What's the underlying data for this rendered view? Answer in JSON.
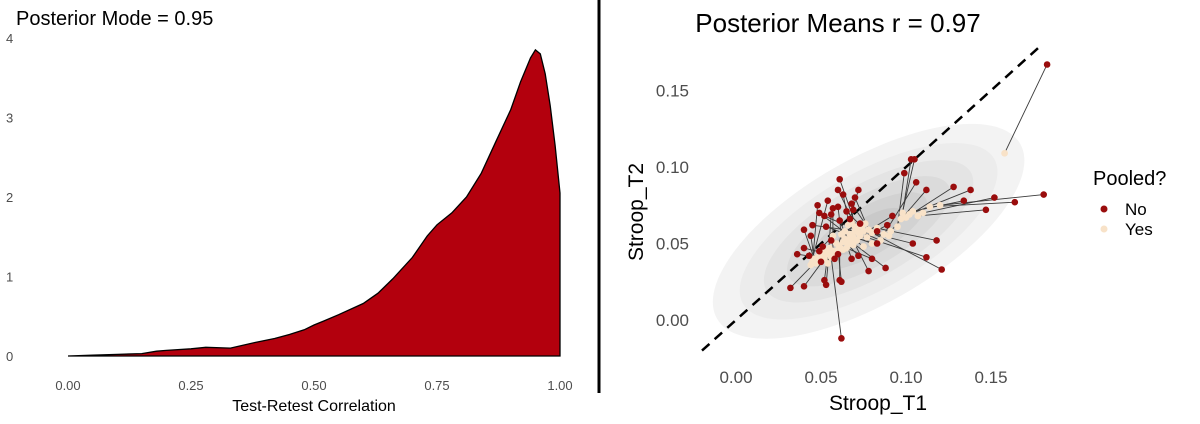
{
  "chart_data": [
    {
      "type": "area",
      "title": "Posterior Mode = 0.95",
      "xlabel": "Test-Retest Correlation",
      "ylabel": "",
      "xlim": [
        -0.03,
        1.0
      ],
      "ylim": [
        0,
        4.2
      ],
      "x_ticks": [
        "0.00",
        "0.25",
        "0.50",
        "0.75",
        "1.00"
      ],
      "y_ticks": [
        "0",
        "1",
        "2",
        "3",
        "4"
      ],
      "fill_color": "#b3000d",
      "grid": false,
      "density": {
        "x": [
          0.0,
          0.05,
          0.1,
          0.15,
          0.18,
          0.2,
          0.25,
          0.28,
          0.33,
          0.38,
          0.42,
          0.45,
          0.48,
          0.5,
          0.52,
          0.55,
          0.6,
          0.63,
          0.66,
          0.7,
          0.73,
          0.75,
          0.78,
          0.81,
          0.84,
          0.87,
          0.9,
          0.92,
          0.94,
          0.95,
          0.96,
          0.97,
          0.98,
          0.99,
          1.0
        ],
        "y": [
          0.0,
          0.01,
          0.02,
          0.03,
          0.06,
          0.07,
          0.09,
          0.11,
          0.1,
          0.17,
          0.22,
          0.27,
          0.33,
          0.39,
          0.44,
          0.52,
          0.66,
          0.79,
          0.97,
          1.24,
          1.51,
          1.65,
          1.8,
          2.0,
          2.3,
          2.7,
          3.1,
          3.45,
          3.75,
          3.85,
          3.8,
          3.55,
          3.15,
          2.65,
          2.05
        ]
      }
    },
    {
      "type": "scatter",
      "title": "Posterior Means r = 0.97",
      "xlabel": "Stroop_T1",
      "ylabel": "Stroop_T2",
      "xlim": [
        -0.02,
        0.195
      ],
      "ylim": [
        -0.02,
        0.175
      ],
      "x_ticks": [
        "0.00",
        "0.05",
        "0.10",
        "0.15"
      ],
      "y_ticks": [
        "0.00",
        "0.05",
        "0.10",
        "0.15"
      ],
      "identity_line": true,
      "grid": false,
      "legend": {
        "title": "Pooled?",
        "placement": "right",
        "entries": [
          {
            "label": "No",
            "color": "#9a0d0d"
          },
          {
            "label": "Yes",
            "color": "#f8e2c8"
          }
        ]
      },
      "series": [
        {
          "name": "No",
          "color": "#9a0d0d",
          "points": [
            [
              0.183,
              0.167
            ],
            [
              0.181,
              0.082
            ],
            [
              0.164,
              0.077
            ],
            [
              0.152,
              0.08
            ],
            [
              0.147,
              0.072
            ],
            [
              0.134,
              0.078
            ],
            [
              0.138,
              0.085
            ],
            [
              0.128,
              0.087
            ],
            [
              0.105,
              0.105
            ],
            [
              0.103,
              0.105
            ],
            [
              0.099,
              0.096
            ],
            [
              0.112,
              0.085
            ],
            [
              0.106,
              0.09
            ],
            [
              0.118,
              0.052
            ],
            [
              0.121,
              0.033
            ],
            [
              0.112,
              0.041
            ],
            [
              0.104,
              0.05
            ],
            [
              0.092,
              0.068
            ],
            [
              0.089,
              0.062
            ],
            [
              0.083,
              0.058
            ],
            [
              0.083,
              0.05
            ],
            [
              0.088,
              0.034
            ],
            [
              0.078,
              0.032
            ],
            [
              0.072,
              0.042
            ],
            [
              0.08,
              0.04
            ],
            [
              0.068,
              0.04
            ],
            [
              0.06,
              0.043
            ],
            [
              0.058,
              0.04
            ],
            [
              0.061,
              0.026
            ],
            [
              0.062,
              0.025
            ],
            [
              0.056,
              0.052
            ],
            [
              0.05,
              0.038
            ],
            [
              0.051,
              0.048
            ],
            [
              0.062,
              -0.012
            ],
            [
              0.053,
              0.023
            ],
            [
              0.052,
              0.026
            ],
            [
              0.032,
              0.021
            ],
            [
              0.04,
              0.022
            ],
            [
              0.04,
              0.047
            ],
            [
              0.043,
              0.042
            ],
            [
              0.049,
              0.045
            ],
            [
              0.036,
              0.043
            ],
            [
              0.04,
              0.059
            ],
            [
              0.044,
              0.055
            ],
            [
              0.048,
              0.075
            ],
            [
              0.054,
              0.078
            ],
            [
              0.056,
              0.069
            ],
            [
              0.057,
              0.073
            ],
            [
              0.06,
              0.074
            ],
            [
              0.061,
              0.065
            ],
            [
              0.063,
              0.082
            ],
            [
              0.06,
              0.085
            ],
            [
              0.061,
              0.092
            ],
            [
              0.065,
              0.071
            ],
            [
              0.068,
              0.076
            ],
            [
              0.07,
              0.08
            ],
            [
              0.072,
              0.085
            ],
            [
              0.069,
              0.072
            ],
            [
              0.067,
              0.066
            ],
            [
              0.073,
              0.063
            ],
            [
              0.049,
              0.07
            ],
            [
              0.053,
              0.061
            ],
            [
              0.052,
              0.068
            ],
            [
              0.045,
              0.062
            ]
          ]
        },
        {
          "name": "Yes",
          "color": "#f8e2c8",
          "points": [
            [
              0.158,
              0.109
            ],
            [
              0.12,
              0.075
            ],
            [
              0.114,
              0.074
            ],
            [
              0.11,
              0.07
            ],
            [
              0.107,
              0.068
            ],
            [
              0.104,
              0.071
            ],
            [
              0.102,
              0.069
            ],
            [
              0.1,
              0.067
            ],
            [
              0.097,
              0.066
            ],
            [
              0.098,
              0.07
            ],
            [
              0.095,
              0.061
            ],
            [
              0.091,
              0.058
            ],
            [
              0.087,
              0.056
            ],
            [
              0.083,
              0.06
            ],
            [
              0.08,
              0.057
            ],
            [
              0.077,
              0.054
            ],
            [
              0.075,
              0.058
            ],
            [
              0.073,
              0.055
            ],
            [
              0.071,
              0.052
            ],
            [
              0.07,
              0.058
            ],
            [
              0.069,
              0.054
            ],
            [
              0.068,
              0.051
            ],
            [
              0.067,
              0.056
            ],
            [
              0.066,
              0.049
            ],
            [
              0.065,
              0.047
            ],
            [
              0.064,
              0.053
            ],
            [
              0.063,
              0.051
            ],
            [
              0.062,
              0.056
            ],
            [
              0.061,
              0.048
            ],
            [
              0.06,
              0.046
            ],
            [
              0.059,
              0.05
            ],
            [
              0.058,
              0.044
            ],
            [
              0.057,
              0.055
            ],
            [
              0.056,
              0.041
            ],
            [
              0.055,
              0.047
            ],
            [
              0.054,
              0.043
            ],
            [
              0.053,
              0.045
            ],
            [
              0.052,
              0.04
            ],
            [
              0.051,
              0.044
            ],
            [
              0.05,
              0.042
            ],
            [
              0.049,
              0.039
            ],
            [
              0.048,
              0.041
            ],
            [
              0.047,
              0.037
            ],
            [
              0.046,
              0.04
            ],
            [
              0.045,
              0.038
            ],
            [
              0.044,
              0.036
            ],
            [
              0.054,
              0.037
            ],
            [
              0.057,
              0.045
            ],
            [
              0.063,
              0.046
            ],
            [
              0.066,
              0.052
            ],
            [
              0.069,
              0.049
            ],
            [
              0.071,
              0.06
            ],
            [
              0.072,
              0.057
            ],
            [
              0.074,
              0.061
            ],
            [
              0.076,
              0.063
            ],
            [
              0.078,
              0.059
            ],
            [
              0.066,
              0.062
            ],
            [
              0.068,
              0.064
            ],
            [
              0.07,
              0.061
            ],
            [
              0.064,
              0.058
            ],
            [
              0.075,
              0.048
            ],
            [
              0.08,
              0.05
            ],
            [
              0.085,
              0.052
            ],
            [
              0.09,
              0.055
            ]
          ]
        }
      ],
      "pairing_note": "",
      "shrinkage_lines": true
    }
  ]
}
